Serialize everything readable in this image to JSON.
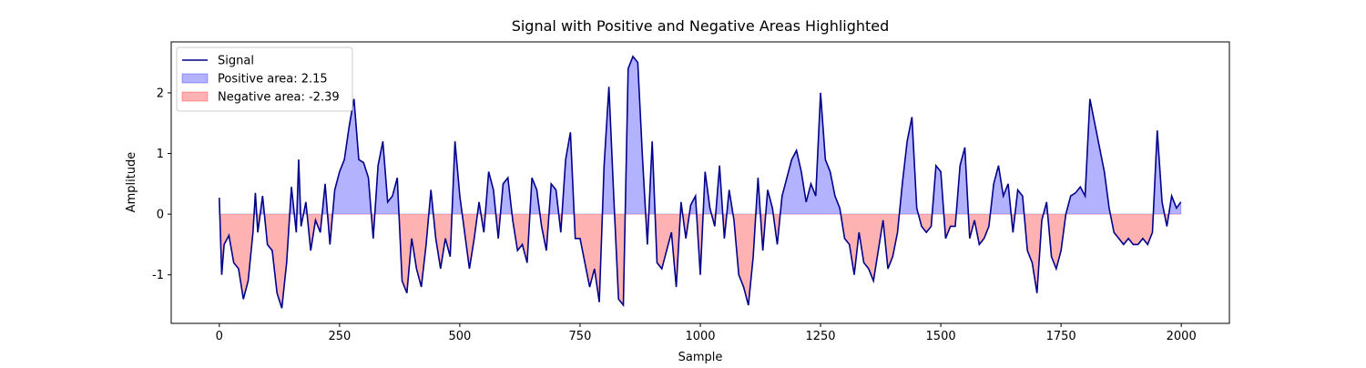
{
  "chart_data": {
    "type": "line",
    "title": "Signal with Positive and Negative Areas Highlighted",
    "xlabel": "Sample",
    "ylabel": "Amplitude",
    "xlim": [
      -100,
      2100
    ],
    "ylim": [
      -1.8,
      2.84
    ],
    "xticks": [
      0,
      250,
      500,
      750,
      1000,
      1250,
      1500,
      1750,
      2000
    ],
    "yticks": [
      -1,
      0,
      1,
      2
    ],
    "legend": "upper left",
    "x": [
      0,
      5,
      10,
      20,
      30,
      40,
      50,
      60,
      70,
      75,
      80,
      90,
      100,
      110,
      120,
      130,
      140,
      150,
      160,
      165,
      170,
      180,
      190,
      200,
      210,
      220,
      230,
      240,
      250,
      260,
      270,
      280,
      290,
      300,
      310,
      320,
      330,
      340,
      350,
      360,
      370,
      380,
      390,
      400,
      410,
      420,
      430,
      440,
      450,
      460,
      470,
      480,
      490,
      500,
      510,
      520,
      530,
      540,
      550,
      560,
      570,
      580,
      590,
      600,
      610,
      620,
      630,
      640,
      650,
      660,
      670,
      680,
      690,
      700,
      710,
      720,
      730,
      740,
      750,
      760,
      770,
      780,
      790,
      800,
      810,
      820,
      830,
      840,
      850,
      860,
      870,
      880,
      890,
      900,
      910,
      920,
      930,
      940,
      950,
      960,
      970,
      980,
      990,
      1000,
      1010,
      1020,
      1030,
      1040,
      1050,
      1060,
      1070,
      1080,
      1090,
      1100,
      1110,
      1120,
      1130,
      1140,
      1150,
      1160,
      1170,
      1180,
      1190,
      1200,
      1210,
      1220,
      1230,
      1240,
      1250,
      1260,
      1270,
      1280,
      1290,
      1300,
      1310,
      1320,
      1330,
      1340,
      1350,
      1360,
      1370,
      1380,
      1390,
      1400,
      1410,
      1420,
      1430,
      1440,
      1450,
      1460,
      1470,
      1480,
      1490,
      1500,
      1510,
      1520,
      1530,
      1540,
      1550,
      1560,
      1570,
      1580,
      1590,
      1600,
      1610,
      1620,
      1630,
      1640,
      1650,
      1660,
      1670,
      1680,
      1690,
      1700,
      1710,
      1720,
      1730,
      1740,
      1750,
      1760,
      1770,
      1780,
      1790,
      1800,
      1810,
      1820,
      1830,
      1840,
      1850,
      1860,
      1870,
      1880,
      1890,
      1900,
      1910,
      1920,
      1930,
      1940,
      1950,
      1960,
      1970,
      1980,
      1990,
      1999
    ],
    "series": [
      {
        "name": "Signal",
        "color": "#00008b",
        "values": [
          0.27,
          -1.0,
          -0.5,
          -0.35,
          -0.8,
          -0.9,
          -1.4,
          -1.1,
          -0.3,
          0.35,
          -0.3,
          0.3,
          -0.5,
          -0.6,
          -1.3,
          -1.55,
          -0.8,
          0.45,
          -0.3,
          0.9,
          -0.2,
          0.2,
          -0.6,
          -0.1,
          -0.3,
          0.5,
          -0.5,
          0.4,
          0.7,
          0.9,
          1.45,
          1.9,
          0.9,
          0.85,
          0.6,
          -0.4,
          0.8,
          1.2,
          0.2,
          0.3,
          0.6,
          -1.1,
          -1.3,
          -0.4,
          -0.9,
          -1.2,
          -0.5,
          0.4,
          -0.4,
          -0.9,
          -0.4,
          -0.7,
          1.2,
          0.3,
          -0.3,
          -0.9,
          -0.4,
          0.2,
          -0.3,
          0.7,
          0.4,
          -0.4,
          0.5,
          0.6,
          -0.1,
          -0.6,
          -0.5,
          -0.8,
          0.6,
          0.4,
          -0.2,
          -0.6,
          0.5,
          0.4,
          -0.3,
          0.9,
          1.35,
          -0.4,
          -0.4,
          -0.8,
          -1.2,
          -0.9,
          -1.45,
          0.8,
          2.1,
          0.3,
          -1.4,
          -1.5,
          2.4,
          2.6,
          2.5,
          0.9,
          -0.5,
          1.2,
          -0.8,
          -0.9,
          -0.6,
          -0.3,
          -1.2,
          0.2,
          -0.4,
          0.15,
          0.3,
          -1.0,
          0.7,
          0.1,
          -0.2,
          0.8,
          -0.4,
          0.4,
          -0.1,
          -1.0,
          -1.2,
          -1.5,
          -0.7,
          0.6,
          -0.6,
          0.4,
          0.1,
          -0.5,
          0.3,
          0.6,
          0.9,
          1.05,
          0.7,
          0.2,
          0.5,
          0.3,
          2.0,
          0.9,
          0.7,
          0.3,
          0.1,
          -0.4,
          -0.5,
          -1.0,
          -0.3,
          -0.8,
          -0.9,
          -1.1,
          -0.6,
          -0.1,
          -0.9,
          -0.7,
          -0.3,
          0.5,
          1.2,
          1.6,
          0.1,
          -0.2,
          -0.3,
          -0.2,
          0.8,
          0.7,
          -0.4,
          -0.2,
          -0.2,
          0.8,
          1.1,
          -0.4,
          -0.1,
          -0.5,
          -0.4,
          -0.2,
          0.5,
          0.8,
          0.3,
          0.5,
          -0.3,
          0.4,
          0.3,
          -0.6,
          -0.8,
          -1.3,
          -0.1,
          0.2,
          -0.7,
          -0.9,
          -0.6,
          0.0,
          0.3,
          0.35,
          0.45,
          0.3,
          1.9,
          1.5,
          1.1,
          0.7,
          0.1,
          -0.3,
          -0.4,
          -0.5,
          -0.4,
          -0.5,
          -0.5,
          -0.4,
          -0.5,
          -0.3,
          1.38,
          0.2,
          -0.2,
          0.3,
          0.1,
          0.2
        ]
      }
    ],
    "fills": [
      {
        "name": "Positive area: 2.15",
        "color": "blue",
        "where": "positive"
      },
      {
        "name": "Negative area: -2.39",
        "color": "red",
        "where": "negative"
      }
    ]
  }
}
